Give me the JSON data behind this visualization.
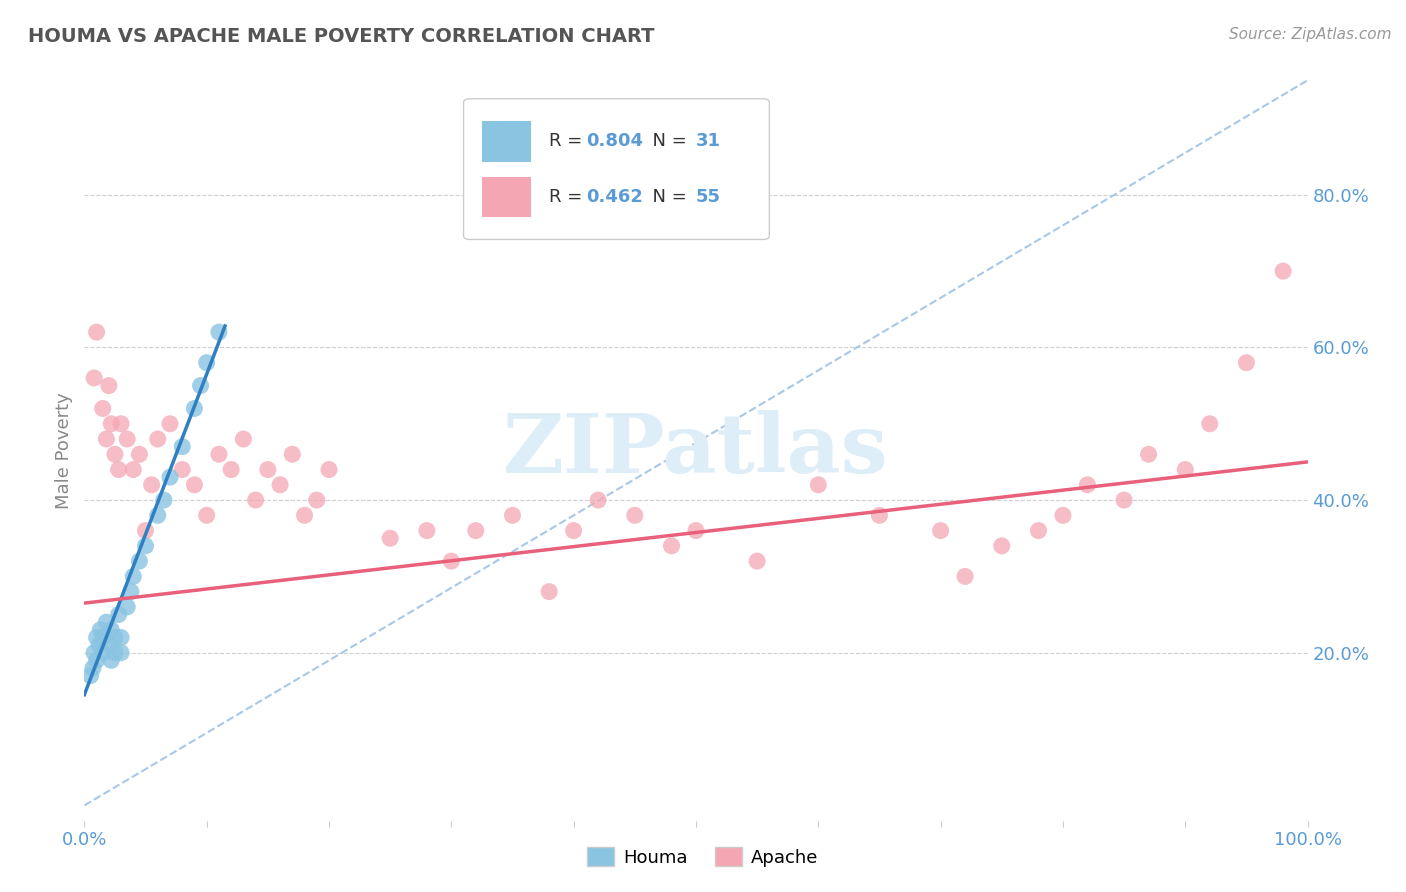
{
  "title": "HOUMA VS APACHE MALE POVERTY CORRELATION CHART",
  "source_text": "Source: ZipAtlas.com",
  "ylabel": "Male Poverty",
  "xlim": [
    0,
    1.0
  ],
  "ylim": [
    -0.02,
    0.95
  ],
  "xticks": [
    0.0,
    0.1,
    0.2,
    0.3,
    0.4,
    0.5,
    0.6,
    0.7,
    0.8,
    0.9,
    1.0
  ],
  "xticklabels": [
    "0.0%",
    "",
    "",
    "",
    "",
    "",
    "",
    "",
    "",
    "",
    "100.0%"
  ],
  "ytick_positions": [
    0.0,
    0.2,
    0.4,
    0.6,
    0.8
  ],
  "yticklabels": [
    "",
    "20.0%",
    "40.0%",
    "60.0%",
    "80.0%"
  ],
  "houma_color": "#89c4e1",
  "apache_color": "#f4a7b3",
  "houma_R": 0.804,
  "houma_N": 31,
  "apache_R": 0.462,
  "apache_N": 55,
  "houma_line_color": "#2f7fc1",
  "apache_line_color": "#e8607a",
  "diagonal_color": "#a8c8e8",
  "grid_color": "#d0d0d0",
  "title_color": "#555555",
  "tick_color": "#5b9bd5",
  "watermark_color": "#ddeef8",
  "houma_x": [
    0.005,
    0.007,
    0.008,
    0.01,
    0.01,
    0.012,
    0.013,
    0.015,
    0.015,
    0.018,
    0.02,
    0.022,
    0.022,
    0.025,
    0.025,
    0.028,
    0.03,
    0.03,
    0.035,
    0.038,
    0.04,
    0.045,
    0.05,
    0.06,
    0.065,
    0.07,
    0.08,
    0.09,
    0.095,
    0.1,
    0.11
  ],
  "houma_y": [
    0.17,
    0.18,
    0.2,
    0.22,
    0.19,
    0.21,
    0.23,
    0.2,
    0.22,
    0.24,
    0.21,
    0.23,
    0.19,
    0.22,
    0.2,
    0.25,
    0.22,
    0.2,
    0.26,
    0.28,
    0.3,
    0.32,
    0.34,
    0.38,
    0.4,
    0.43,
    0.47,
    0.52,
    0.55,
    0.58,
    0.62
  ],
  "apache_x": [
    0.008,
    0.01,
    0.015,
    0.018,
    0.02,
    0.022,
    0.025,
    0.028,
    0.03,
    0.035,
    0.04,
    0.045,
    0.05,
    0.055,
    0.06,
    0.07,
    0.08,
    0.09,
    0.1,
    0.11,
    0.12,
    0.13,
    0.14,
    0.15,
    0.16,
    0.17,
    0.18,
    0.19,
    0.2,
    0.25,
    0.28,
    0.3,
    0.32,
    0.35,
    0.38,
    0.4,
    0.42,
    0.45,
    0.48,
    0.5,
    0.55,
    0.6,
    0.65,
    0.7,
    0.72,
    0.75,
    0.78,
    0.8,
    0.82,
    0.85,
    0.87,
    0.9,
    0.92,
    0.95,
    0.98
  ],
  "apache_y": [
    0.56,
    0.62,
    0.52,
    0.48,
    0.55,
    0.5,
    0.46,
    0.44,
    0.5,
    0.48,
    0.44,
    0.46,
    0.36,
    0.42,
    0.48,
    0.5,
    0.44,
    0.42,
    0.38,
    0.46,
    0.44,
    0.48,
    0.4,
    0.44,
    0.42,
    0.46,
    0.38,
    0.4,
    0.44,
    0.35,
    0.36,
    0.32,
    0.36,
    0.38,
    0.28,
    0.36,
    0.4,
    0.38,
    0.34,
    0.36,
    0.32,
    0.42,
    0.38,
    0.36,
    0.3,
    0.34,
    0.36,
    0.38,
    0.42,
    0.4,
    0.46,
    0.44,
    0.5,
    0.58,
    0.7
  ],
  "background_color": "#ffffff",
  "houma_line_start": 0.0,
  "houma_line_end": 0.115,
  "apache_line_start": 0.0,
  "apache_line_end": 1.0,
  "houma_intercept": 0.145,
  "houma_slope": 4.2,
  "apache_intercept": 0.265,
  "apache_slope": 0.185
}
